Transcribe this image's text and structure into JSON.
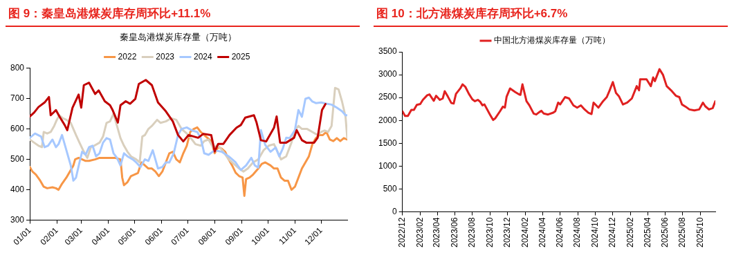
{
  "chart_data": [
    {
      "type": "line",
      "title": "图 9：秦皇岛港煤炭库存周环比+11.1%",
      "subtitle": "秦皇岛港煤炭库存量（万吨）",
      "legend": "top",
      "marker": "none",
      "xlim": [
        "--01-01",
        "--12-31"
      ],
      "xticks": [
        {
          "value": "--01-01",
          "label": "01/01"
        },
        {
          "value": "--02-01",
          "label": "02/01"
        },
        {
          "value": "--03-01",
          "label": "03/01"
        },
        {
          "value": "--04-01",
          "label": "04/01"
        },
        {
          "value": "--05-01",
          "label": "05/01"
        },
        {
          "value": "--06-01",
          "label": "06/01"
        },
        {
          "value": "--07-01",
          "label": "07/01"
        },
        {
          "value": "--08-01",
          "label": "08/01"
        },
        {
          "value": "--09-01",
          "label": "09/01"
        },
        {
          "value": "--10-01",
          "label": "10/01"
        },
        {
          "value": "--11-01",
          "label": "11/01"
        },
        {
          "value": "--12-01",
          "label": "12/01"
        }
      ],
      "ylim": [
        300,
        800
      ],
      "yticks": [
        300,
        400,
        500,
        600,
        700,
        800
      ],
      "series": [
        {
          "name": "2022",
          "color": "#f79646",
          "x": [
            "--01-01",
            "--01-04",
            "--01-08",
            "--01-13",
            "--01-17",
            "--01-21",
            "--01-27",
            "--01-31",
            "--02-03",
            "--02-07",
            "--02-12",
            "--02-16",
            "--02-20",
            "--02-22",
            "--02-26",
            "--03-02",
            "--03-06",
            "--03-10",
            "--03-17",
            "--03-22",
            "--03-28",
            "--04-03",
            "--04-09",
            "--04-15",
            "--04-17",
            "--04-19",
            "--04-23",
            "--04-27",
            "--05-01",
            "--05-05",
            "--05-09",
            "--05-13",
            "--05-17",
            "--05-21",
            "--05-25",
            "--05-29",
            "--06-02",
            "--06-06",
            "--06-10",
            "--06-14",
            "--06-18",
            "--06-22",
            "--06-26",
            "--06-30",
            "--07-04",
            "--07-08",
            "--07-12",
            "--07-16",
            "--07-20",
            "--07-24",
            "--07-28",
            "--08-01",
            "--08-05",
            "--08-09",
            "--08-13",
            "--08-17",
            "--08-21",
            "--08-25",
            "--08-29",
            "--09-02",
            "--09-04",
            "--09-06",
            "--09-10",
            "--09-14",
            "--09-20",
            "--09-24",
            "--09-28",
            "--10-04",
            "--10-08",
            "--10-12",
            "--10-16",
            "--10-20",
            "--10-24",
            "--10-28",
            "--11-01",
            "--11-05",
            "--11-09",
            "--11-13",
            "--11-17",
            "--11-21",
            "--11-25",
            "--11-29",
            "--12-03",
            "--12-07",
            "--12-11",
            "--12-15",
            "--12-19",
            "--12-23",
            "--12-27",
            "--12-31"
          ],
          "values": [
            475,
            460,
            450,
            430,
            410,
            405,
            408,
            405,
            400,
            420,
            440,
            460,
            480,
            500,
            505,
            500,
            495,
            495,
            500,
            505,
            505,
            505,
            505,
            500,
            440,
            415,
            425,
            445,
            450,
            455,
            490,
            480,
            470,
            470,
            460,
            445,
            460,
            490,
            520,
            525,
            500,
            490,
            520,
            545,
            590,
            600,
            605,
            590,
            580,
            570,
            560,
            520,
            540,
            535,
            525,
            500,
            480,
            456,
            445,
            440,
            380,
            435,
            440,
            450,
            470,
            485,
            490,
            480,
            470,
            470,
            440,
            430,
            430,
            400,
            410,
            440,
            470,
            490,
            510,
            550,
            570,
            580,
            580,
            590,
            565,
            560,
            570,
            560,
            570,
            565
          ]
        },
        {
          "name": "2023",
          "color": "#d9cfbd",
          "x": [
            "--01-01",
            "--01-06",
            "--01-11",
            "--01-15",
            "--01-17",
            "--01-21",
            "--01-25",
            "--01-29",
            "--02-01",
            "--02-04",
            "--02-08",
            "--02-12",
            "--02-17",
            "--02-20",
            "--02-23",
            "--02-27",
            "--03-04",
            "--03-08",
            "--03-12",
            "--03-16",
            "--03-22",
            "--03-26",
            "--03-30",
            "--04-03",
            "--04-07",
            "--04-11",
            "--04-15",
            "--04-19",
            "--04-23",
            "--04-27",
            "--05-03",
            "--05-07",
            "--05-10",
            "--05-13",
            "--05-17",
            "--05-21",
            "--05-27",
            "--05-31",
            "--06-06",
            "--06-12",
            "--06-18",
            "--06-24",
            "--06-30",
            "--07-06",
            "--07-10",
            "--07-16",
            "--07-20",
            "--07-25",
            "--07-30",
            "--08-05",
            "--08-11",
            "--08-17",
            "--08-23",
            "--08-29",
            "--09-03",
            "--09-08",
            "--09-14",
            "--09-20",
            "--09-26",
            "--10-02",
            "--10-08",
            "--10-12",
            "--10-16",
            "--10-22",
            "--10-28",
            "--11-01",
            "--11-05",
            "--11-09",
            "--11-15",
            "--11-21",
            "--11-27",
            "--12-01",
            "--12-05",
            "--12-09",
            "--12-13",
            "--12-17",
            "--12-21",
            "--12-25",
            "--12-29",
            "--12-31"
          ],
          "values": [
            565,
            555,
            545,
            540,
            590,
            585,
            590,
            610,
            630,
            645,
            635,
            630,
            620,
            600,
            580,
            555,
            525,
            505,
            540,
            545,
            555,
            575,
            620,
            625,
            650,
            610,
            570,
            545,
            525,
            510,
            500,
            490,
            575,
            580,
            600,
            610,
            630,
            620,
            625,
            635,
            630,
            600,
            585,
            565,
            550,
            545,
            560,
            565,
            540,
            545,
            525,
            500,
            485,
            470,
            460,
            470,
            490,
            500,
            530,
            545,
            550,
            525,
            500,
            510,
            555,
            595,
            610,
            600,
            600,
            590,
            580,
            590,
            595,
            590,
            610,
            735,
            730,
            690,
            640,
            570
          ]
        },
        {
          "name": "2024",
          "color": "#a6c8ff",
          "x": [
            "--01-01",
            "--01-07",
            "--01-14",
            "--01-18",
            "--01-22",
            "--01-27",
            "--01-31",
            "--02-03",
            "--02-07",
            "--02-10",
            "--02-13",
            "--02-17",
            "--02-20",
            "--02-23",
            "--02-27",
            "--03-02",
            "--03-06",
            "--03-10",
            "--03-14",
            "--03-18",
            "--03-22",
            "--03-26",
            "--03-30",
            "--04-03",
            "--04-07",
            "--04-11",
            "--04-15",
            "--04-19",
            "--04-23",
            "--04-29",
            "--05-03",
            "--05-08",
            "--05-13",
            "--05-17",
            "--05-22",
            "--05-25",
            "--05-28",
            "--06-02",
            "--06-06",
            "--06-10",
            "--06-15",
            "--06-20",
            "--06-24",
            "--06-30",
            "--07-06",
            "--07-12",
            "--07-16",
            "--07-20",
            "--07-25",
            "--08-01",
            "--08-09",
            "--08-17",
            "--08-25",
            "--08-31",
            "--09-06",
            "--09-12",
            "--09-16",
            "--09-20",
            "--09-23",
            "--09-28",
            "--10-04",
            "--10-10",
            "--10-14",
            "--10-18",
            "--10-22",
            "--10-26",
            "--11-01",
            "--11-05",
            "--11-09",
            "--11-13",
            "--11-17",
            "--11-21",
            "--11-25",
            "--12-01",
            "--12-07",
            "--12-13",
            "--12-19",
            "--12-25",
            "--12-29",
            "--12-31"
          ],
          "values": [
            571,
            585,
            575,
            540,
            545,
            565,
            540,
            550,
            580,
            550,
            520,
            480,
            430,
            440,
            490,
            525,
            515,
            540,
            545,
            510,
            520,
            555,
            570,
            565,
            520,
            505,
            480,
            520,
            510,
            500,
            490,
            475,
            500,
            495,
            530,
            500,
            470,
            475,
            490,
            490,
            520,
            580,
            600,
            605,
            595,
            590,
            570,
            520,
            515,
            530,
            525,
            510,
            490,
            465,
            480,
            505,
            480,
            473,
            596,
            547,
            525,
            539,
            510,
            535,
            571,
            570,
            596,
            662,
            640,
            699,
            703,
            690,
            685,
            687,
            683,
            680,
            670,
            658,
            645,
            645
          ]
        },
        {
          "name": "2025",
          "color": "#c00000",
          "x": [
            "--01-01",
            "--01-06",
            "--01-11",
            "--01-18",
            "--01-23",
            "--01-25",
            "--01-31",
            "--02-04",
            "--02-10",
            "--02-13",
            "--02-19",
            "--02-26",
            "--03-01",
            "--03-04",
            "--03-10",
            "--03-17",
            "--03-21",
            "--03-28",
            "--04-03",
            "--04-06",
            "--04-12",
            "--04-15",
            "--04-21",
            "--04-26",
            "--05-02",
            "--05-06",
            "--05-14",
            "--05-21",
            "--05-28",
            "--06-06",
            "--06-14",
            "--06-20",
            "--06-26",
            "--07-02",
            "--07-13",
            "--07-19",
            "--07-28",
            "--08-01",
            "--08-05",
            "--08-11",
            "--08-18",
            "--08-26",
            "--08-31",
            "--09-05",
            "--09-15",
            "--09-18",
            "--09-23",
            "--09-29",
            "--10-08",
            "--10-11",
            "--10-15",
            "--10-22",
            "--10-31",
            "--11-03",
            "--11-09",
            "--11-14",
            "--11-23",
            "--11-27",
            "--12-02",
            "--12-06"
          ],
          "values": [
            641,
            654,
            672,
            687,
            705,
            645,
            662,
            641,
            613,
            596,
            670,
            713,
            670,
            744,
            752,
            715,
            727,
            691,
            678,
            662,
            621,
            678,
            691,
            683,
            699,
            748,
            761,
            744,
            687,
            658,
            625,
            580,
            559,
            580,
            571,
            584,
            580,
            526,
            551,
            551,
            580,
            604,
            613,
            637,
            645,
            621,
            563,
            559,
            604,
            641,
            555,
            555,
            571,
            596,
            563,
            555,
            555,
            571,
            662,
            682
          ]
        }
      ]
    },
    {
      "type": "line",
      "title": "图 10：北方港煤炭库存周环比+6.7%",
      "legend": "top",
      "marker": "none",
      "xlim": [
        "2022-12-01",
        "2025-11-22"
      ],
      "xticks": [
        {
          "value": "2022-12",
          "label": "2022/12"
        },
        {
          "value": "2023-02",
          "label": "2023/02"
        },
        {
          "value": "2023-04",
          "label": "2023/04"
        },
        {
          "value": "2023-06",
          "label": "2023/06"
        },
        {
          "value": "2023-08",
          "label": "2023/08"
        },
        {
          "value": "2023-10",
          "label": "2023/10"
        },
        {
          "value": "2023-12",
          "label": "2023/12"
        },
        {
          "value": "2024-02",
          "label": "2024/02"
        },
        {
          "value": "2024-04",
          "label": "2024/04"
        },
        {
          "value": "2024-06",
          "label": "2024/06"
        },
        {
          "value": "2024-08",
          "label": "2024/08"
        },
        {
          "value": "2024-10",
          "label": "2024/10"
        },
        {
          "value": "2024-12",
          "label": "2024/12"
        },
        {
          "value": "2025-02",
          "label": "2025/02"
        },
        {
          "value": "2025-04",
          "label": "2025/04"
        },
        {
          "value": "2025-06",
          "label": "2025/06"
        },
        {
          "value": "2025-08",
          "label": "2025/08"
        },
        {
          "value": "2025-10",
          "label": "2025/10"
        }
      ],
      "ylim": [
        0,
        3500
      ],
      "yticks": [
        0,
        500,
        1000,
        1500,
        2000,
        2500,
        3000,
        3500
      ],
      "series": [
        {
          "name": "中国北方港煤炭库存量（万吨）",
          "color": "#e02020",
          "x": [
            "2022-12-01",
            "2022-12-10",
            "2022-12-20",
            "2023-01-01",
            "2023-01-10",
            "2023-01-20",
            "2023-02-01",
            "2023-02-10",
            "2023-02-25",
            "2023-03-05",
            "2023-03-20",
            "2023-03-28",
            "2023-04-10",
            "2023-04-20",
            "2023-04-27",
            "2023-05-08",
            "2023-05-20",
            "2023-05-28",
            "2023-06-05",
            "2023-06-20",
            "2023-06-28",
            "2023-07-08",
            "2023-07-20",
            "2023-08-01",
            "2023-08-10",
            "2023-08-20",
            "2023-08-28",
            "2023-09-05",
            "2023-09-12",
            "2023-10-01",
            "2023-10-12",
            "2023-10-20",
            "2023-11-05",
            "2023-11-15",
            "2023-11-22",
            "2023-11-28",
            "2023-12-10",
            "2023-12-28",
            "2024-01-10",
            "2024-01-15",
            "2024-01-22",
            "2024-02-05",
            "2024-02-15",
            "2024-03-01",
            "2024-03-10",
            "2024-03-20",
            "2024-03-28",
            "2024-04-05",
            "2024-04-20",
            "2024-05-08",
            "2024-05-15",
            "2024-05-25",
            "2024-06-01",
            "2024-06-18",
            "2024-07-02",
            "2024-07-17",
            "2024-07-30",
            "2024-08-12",
            "2024-08-25",
            "2024-09-07",
            "2024-09-18",
            "2024-09-25",
            "2024-10-12",
            "2024-10-28",
            "2024-11-10",
            "2024-11-20",
            "2024-12-01",
            "2024-12-12",
            "2024-12-22",
            "2025-01-05",
            "2025-01-20",
            "2025-02-05",
            "2025-02-22",
            "2025-03-02",
            "2025-03-06",
            "2025-03-28",
            "2025-04-12",
            "2025-04-20",
            "2025-04-26",
            "2025-05-12",
            "2025-05-24",
            "2025-06-06",
            "2025-06-21",
            "2025-07-08",
            "2025-07-20",
            "2025-07-29",
            "2025-08-11",
            "2025-08-24",
            "2025-09-10",
            "2025-09-27",
            "2025-10-10",
            "2025-10-18",
            "2025-10-31",
            "2025-11-13",
            "2025-11-22"
          ],
          "values": [
            2200,
            2100,
            2100,
            2230,
            2230,
            2340,
            2360,
            2450,
            2550,
            2570,
            2430,
            2540,
            2450,
            2480,
            2640,
            2520,
            2380,
            2370,
            2580,
            2700,
            2790,
            2730,
            2580,
            2460,
            2420,
            2450,
            2410,
            2330,
            2350,
            2130,
            2010,
            2050,
            2200,
            2300,
            2280,
            2520,
            2700,
            2620,
            2570,
            2560,
            2790,
            2420,
            2330,
            2150,
            2130,
            2180,
            2210,
            2150,
            2130,
            2170,
            2200,
            2390,
            2350,
            2510,
            2480,
            2330,
            2280,
            2330,
            2240,
            2170,
            2140,
            2390,
            2280,
            2420,
            2510,
            2660,
            2840,
            2600,
            2530,
            2350,
            2390,
            2480,
            2750,
            2660,
            2900,
            2900,
            2750,
            2940,
            2860,
            3120,
            3000,
            2750,
            2660,
            2540,
            2510,
            2350,
            2300,
            2240,
            2220,
            2240,
            2390,
            2310,
            2240,
            2270,
            2420
          ]
        }
      ]
    }
  ]
}
